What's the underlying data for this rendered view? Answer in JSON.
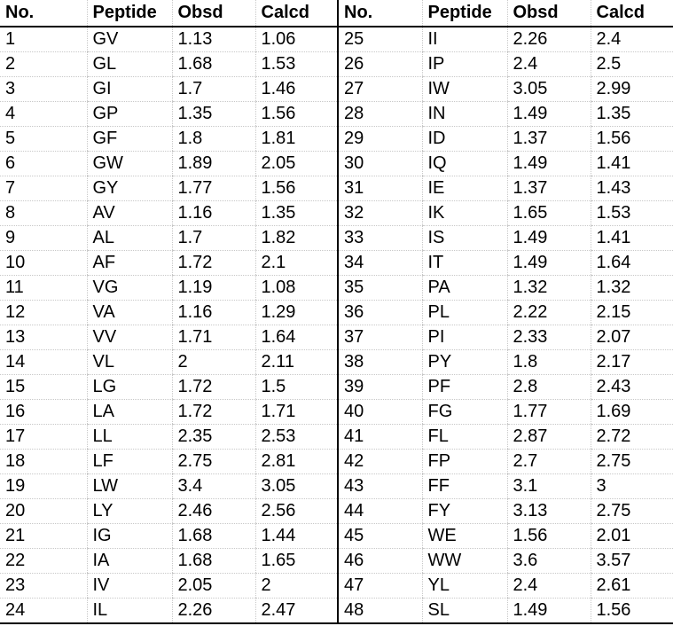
{
  "table": {
    "headers": [
      "No.",
      "Peptide",
      "Obsd",
      "Calcd",
      "No.",
      "Peptide",
      "Obsd",
      "Calcd"
    ],
    "rows": [
      [
        "1",
        "GV",
        "1.13",
        "1.06",
        "25",
        "II",
        "2.26",
        "2.4"
      ],
      [
        "2",
        "GL",
        "1.68",
        "1.53",
        "26",
        "IP",
        "2.4",
        "2.5"
      ],
      [
        "3",
        "GI",
        "1.7",
        "1.46",
        "27",
        "IW",
        "3.05",
        "2.99"
      ],
      [
        "4",
        "GP",
        "1.35",
        "1.56",
        "28",
        "IN",
        "1.49",
        "1.35"
      ],
      [
        "5",
        "GF",
        "1.8",
        "1.81",
        "29",
        "ID",
        "1.37",
        "1.56"
      ],
      [
        "6",
        "GW",
        "1.89",
        "2.05",
        "30",
        "IQ",
        "1.49",
        "1.41"
      ],
      [
        "7",
        "GY",
        "1.77",
        "1.56",
        "31",
        "IE",
        "1.37",
        "1.43"
      ],
      [
        "8",
        "AV",
        "1.16",
        "1.35",
        "32",
        "IK",
        "1.65",
        "1.53"
      ],
      [
        "9",
        "AL",
        "1.7",
        "1.82",
        "33",
        "IS",
        "1.49",
        "1.41"
      ],
      [
        "10",
        "AF",
        "1.72",
        "2.1",
        "34",
        "IT",
        "1.49",
        "1.64"
      ],
      [
        "11",
        "VG",
        "1.19",
        "1.08",
        "35",
        "PA",
        "1.32",
        "1.32"
      ],
      [
        "12",
        "VA",
        "1.16",
        "1.29",
        "36",
        "PL",
        "2.22",
        "2.15"
      ],
      [
        "13",
        "VV",
        "1.71",
        "1.64",
        "37",
        "PI",
        "2.33",
        "2.07"
      ],
      [
        "14",
        "VL",
        "2",
        "2.11",
        "38",
        "PY",
        "1.8",
        "2.17"
      ],
      [
        "15",
        "LG",
        "1.72",
        "1.5",
        "39",
        "PF",
        "2.8",
        "2.43"
      ],
      [
        "16",
        "LA",
        "1.72",
        "1.71",
        "40",
        "FG",
        "1.77",
        "1.69"
      ],
      [
        "17",
        "LL",
        "2.35",
        "2.53",
        "41",
        "FL",
        "2.87",
        "2.72"
      ],
      [
        "18",
        "LF",
        "2.75",
        "2.81",
        "42",
        "FP",
        "2.7",
        "2.75"
      ],
      [
        "19",
        "LW",
        "3.4",
        "3.05",
        "43",
        "FF",
        "3.1",
        "3"
      ],
      [
        "20",
        "LY",
        "2.46",
        "2.56",
        "44",
        "FY",
        "3.13",
        "2.75"
      ],
      [
        "21",
        "IG",
        "1.68",
        "1.44",
        "45",
        "WE",
        "1.56",
        "2.01"
      ],
      [
        "22",
        "IA",
        "1.68",
        "1.65",
        "46",
        "WW",
        "3.6",
        "3.57"
      ],
      [
        "23",
        "IV",
        "2.05",
        "2",
        "47",
        "YL",
        "2.4",
        "2.61"
      ],
      [
        "24",
        "IL",
        "2.26",
        "2.47",
        "48",
        "SL",
        "1.49",
        "1.56"
      ]
    ]
  }
}
